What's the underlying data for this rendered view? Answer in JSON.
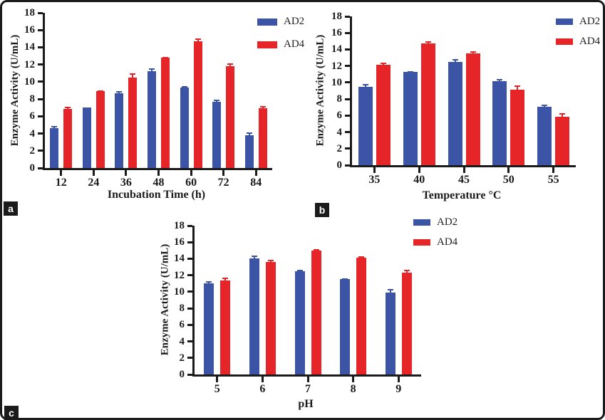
{
  "figure": {
    "panel_labels": [
      "a",
      "b",
      "c"
    ],
    "background": "#ffffff",
    "border_color": "#1b1b1b"
  },
  "colors": {
    "ad2_blue": "#3B54A6",
    "ad4_red": "#E52528",
    "axis_black": "#1b1b1b",
    "panel_label_bg": "#1b1b1b",
    "panel_label_fg": "#ffffff"
  },
  "chart_data": [
    {
      "type": "bar",
      "panel": "a",
      "title": "",
      "xlabel": "Incubation Time (h)",
      "ylabel": "Enzyme Activity (U/mL)",
      "categories": [
        "12",
        "24",
        "36",
        "48",
        "60",
        "72",
        "84"
      ],
      "ylim": [
        0,
        18
      ],
      "ytick_step": 2,
      "grid": false,
      "error_bars": true,
      "legend_position": "top-right",
      "series": [
        {
          "name": "AD2",
          "color": "#3B54A6",
          "values": [
            4.6,
            7.0,
            8.7,
            11.25,
            9.3,
            7.7,
            3.8
          ],
          "errors": [
            0.25,
            0.05,
            0.2,
            0.3,
            0.2,
            0.25,
            0.35
          ]
        },
        {
          "name": "AD4",
          "color": "#E52528",
          "values": [
            6.85,
            8.9,
            10.45,
            12.8,
            14.7,
            11.8,
            6.9
          ],
          "errors": [
            0.25,
            0.1,
            0.5,
            0.1,
            0.3,
            0.3,
            0.25
          ]
        }
      ]
    },
    {
      "type": "bar",
      "panel": "b",
      "title": "",
      "xlabel": "Temperature °C",
      "ylabel": "Enzyme Activity (U/mL)",
      "categories": [
        "35",
        "40",
        "45",
        "50",
        "55"
      ],
      "ylim": [
        0,
        18
      ],
      "ytick_step": 2,
      "grid": false,
      "error_bars": true,
      "legend_position": "top-right",
      "series": [
        {
          "name": "AD2",
          "color": "#3B54A6",
          "values": [
            9.45,
            11.25,
            12.45,
            10.2,
            7.1
          ],
          "errors": [
            0.4,
            0.08,
            0.35,
            0.25,
            0.25
          ]
        },
        {
          "name": "AD4",
          "color": "#E52528",
          "values": [
            12.15,
            14.7,
            13.55,
            9.1,
            5.9
          ],
          "errors": [
            0.25,
            0.3,
            0.2,
            0.55,
            0.4
          ]
        }
      ]
    },
    {
      "type": "bar",
      "panel": "c",
      "title": "",
      "xlabel": "pH",
      "ylabel": "Enzyme Activity (U/mL)",
      "categories": [
        "5",
        "6",
        "7",
        "8",
        "9"
      ],
      "ylim": [
        0,
        18
      ],
      "ytick_step": 2,
      "grid": false,
      "error_bars": true,
      "legend_position": "top-right",
      "series": [
        {
          "name": "AD2",
          "color": "#3B54A6",
          "values": [
            11.0,
            14.05,
            12.5,
            11.5,
            9.9
          ],
          "errors": [
            0.3,
            0.3,
            0.2,
            0.1,
            0.4
          ]
        },
        {
          "name": "AD4",
          "color": "#E52528",
          "values": [
            11.4,
            13.6,
            14.95,
            14.1,
            12.35
          ],
          "errors": [
            0.3,
            0.25,
            0.25,
            0.2,
            0.35
          ]
        }
      ]
    }
  ]
}
